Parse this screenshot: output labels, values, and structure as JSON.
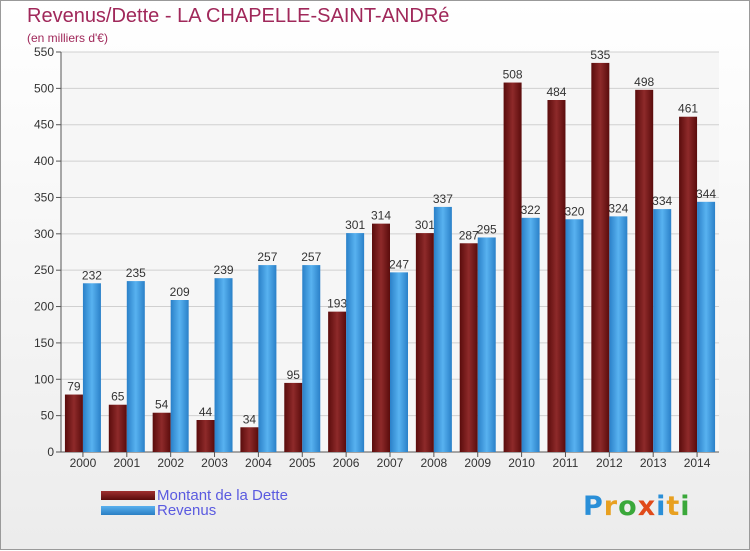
{
  "chart_data": {
    "type": "bar",
    "title": "Revenus/Dette - LA CHAPELLE-SAINT-ANDRé",
    "subtitle": "(en milliers d'€)",
    "categories": [
      "2000",
      "2001",
      "2002",
      "2003",
      "2004",
      "2005",
      "2006",
      "2007",
      "2008",
      "2009",
      "2010",
      "2011",
      "2012",
      "2013",
      "2014"
    ],
    "series": [
      {
        "name": "Montant de la Dette",
        "color": "#7a1a1a",
        "values": [
          79,
          65,
          54,
          44,
          34,
          95,
          193,
          314,
          301,
          287,
          508,
          484,
          535,
          498,
          461
        ]
      },
      {
        "name": "Revenus",
        "color": "#3e9fe0",
        "values": [
          232,
          235,
          209,
          239,
          257,
          257,
          301,
          247,
          337,
          295,
          322,
          320,
          324,
          334,
          344
        ]
      }
    ],
    "ylim": [
      0,
      550
    ],
    "yticks": [
      0,
      50,
      100,
      150,
      200,
      250,
      300,
      350,
      400,
      450,
      500,
      550
    ],
    "grid": true,
    "legend_position": "bottom-left"
  },
  "logo": {
    "text": "Proxiti",
    "letters": [
      {
        "ch": "P",
        "color": "#2a8fd8"
      },
      {
        "ch": "r",
        "color": "#e8a020"
      },
      {
        "ch": "o",
        "color": "#3aa83a"
      },
      {
        "ch": "x",
        "color": "#e04a1a"
      },
      {
        "ch": "i",
        "color": "#2a8fd8"
      },
      {
        "ch": "t",
        "color": "#e8a020"
      },
      {
        "ch": "i",
        "color": "#3aa83a"
      }
    ]
  }
}
